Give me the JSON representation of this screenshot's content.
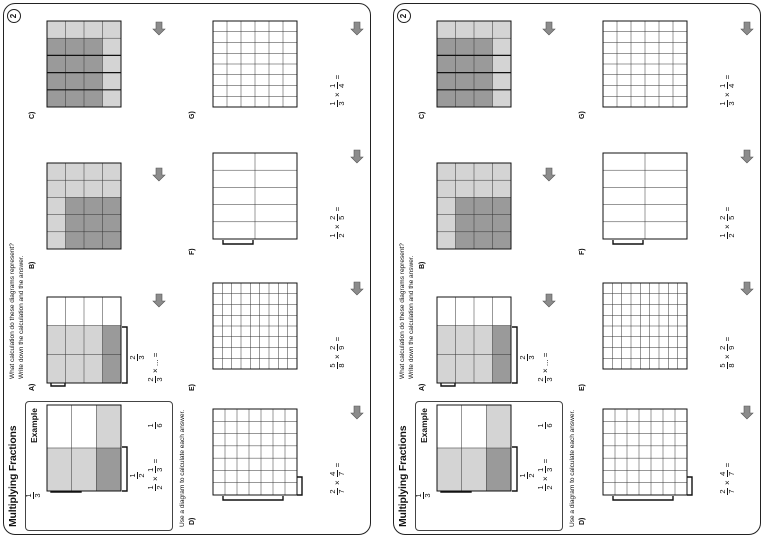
{
  "worksheet": {
    "title": "Multiplying Fractions",
    "page_number": "2",
    "example_label": "Example",
    "instruction_1": "What calculation do these diagrams represent?",
    "instruction_2": "Write down the calculation and the answer.",
    "instruction_3": "Use a diagram to calculate each answer.",
    "example": {
      "left_bracket": {
        "num": "1",
        "den": "2"
      },
      "top_bracket": {
        "num": "1",
        "den": "3"
      },
      "expression": {
        "a": {
          "num": "1",
          "den": "2"
        },
        "b": {
          "num": "1",
          "den": "3"
        },
        "r": {
          "num": "1",
          "den": "6"
        }
      }
    },
    "questions": [
      {
        "label": "A)",
        "bracket": {
          "num": "2",
          "den": "3"
        },
        "expr_a": {
          "num": "2",
          "den": "3"
        },
        "tail": "× ... ="
      },
      {
        "label": "B)"
      },
      {
        "label": "C)"
      },
      {
        "label": "D)",
        "expr_a": {
          "num": "2",
          "den": "7"
        },
        "expr_b": {
          "num": "4",
          "den": "7"
        },
        "tail": "="
      },
      {
        "label": "E)",
        "expr_a": {
          "num": "5",
          "den": "8"
        },
        "expr_b": {
          "num": "2",
          "den": "9"
        },
        "tail": "="
      },
      {
        "label": "F)",
        "expr_a": {
          "num": "1",
          "den": "2"
        },
        "expr_b": {
          "num": "2",
          "den": "5"
        },
        "tail": "="
      },
      {
        "label": "G)",
        "expr_a": {
          "num": "1",
          "den": "3"
        },
        "expr_b": {
          "num": "1",
          "den": "4"
        },
        "tail": "="
      }
    ],
    "colors": {
      "dark": "#9a9a9a",
      "light": "#d4d4d4",
      "border": "#222222",
      "arrow": "#8c8c8c"
    }
  }
}
